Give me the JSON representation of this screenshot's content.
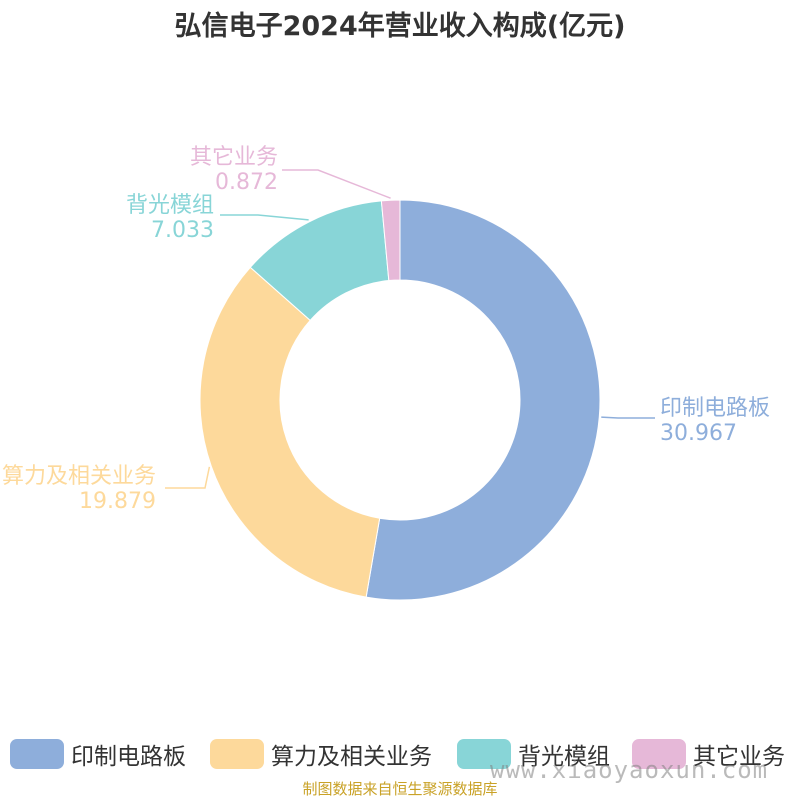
{
  "chart_data": {
    "type": "pie",
    "title": "弘信电子2024年营业收入构成(亿元)",
    "categories": [
      "印制电路板",
      "算力及相关业务",
      "背光模组",
      "其它业务"
    ],
    "values": [
      30.967,
      19.879,
      7.033,
      0.872
    ],
    "value_labels": [
      "30.967",
      "19.879",
      "7.033",
      "0.872"
    ],
    "colors": [
      "#8eaedb",
      "#fdd99b",
      "#88d5d7",
      "#e6b8d8"
    ],
    "legend_position": "bottom",
    "donut": true
  },
  "footer": {
    "source": "制图数据来自恒生聚源数据库",
    "watermark": "www.xiaoyaoxun.com"
  }
}
